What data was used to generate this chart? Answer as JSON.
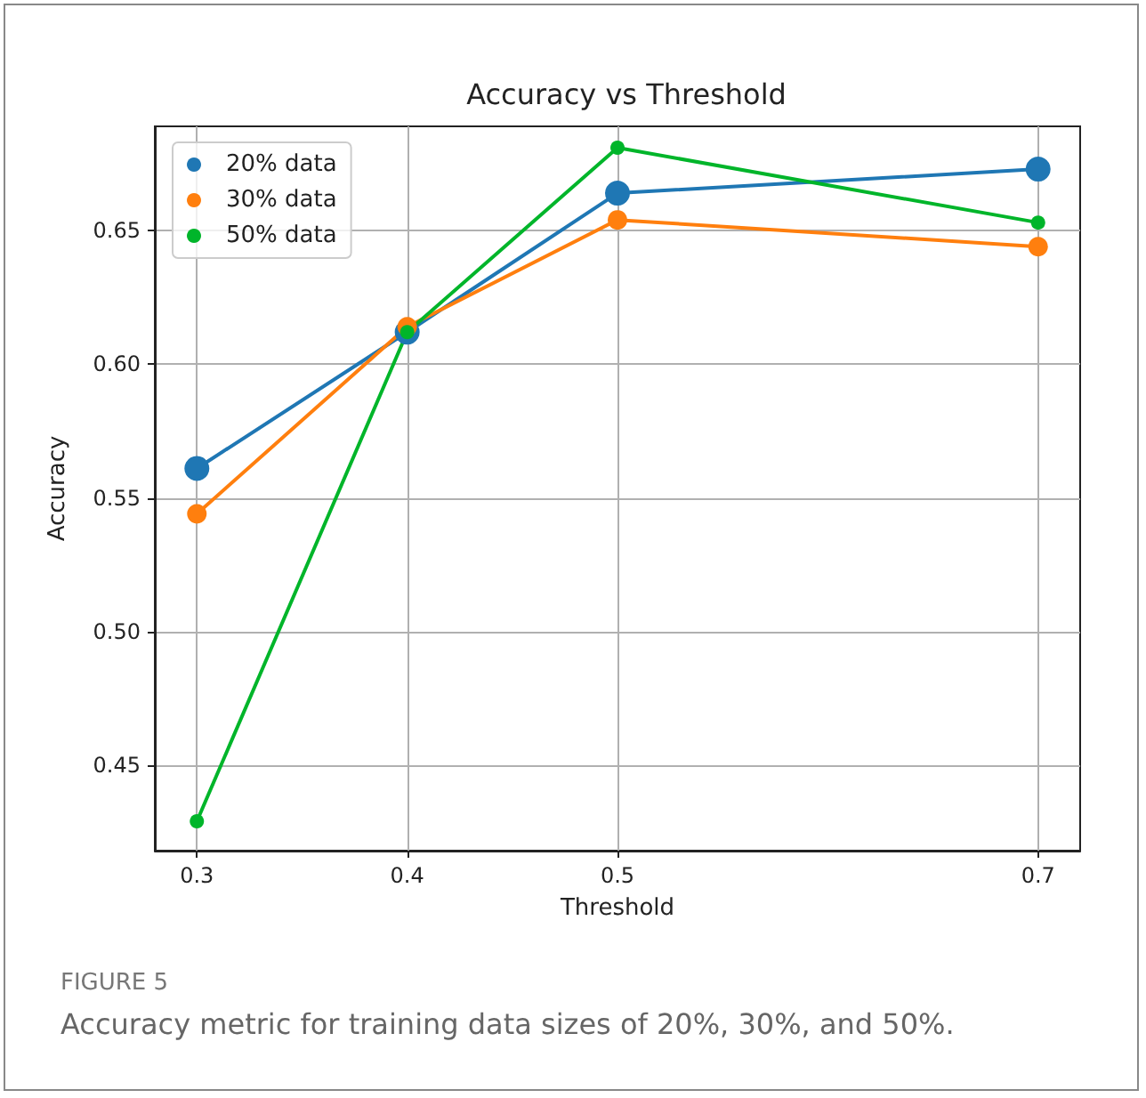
{
  "chart_data": {
    "type": "line",
    "title": "Accuracy vs Threshold",
    "xlabel": "Threshold",
    "ylabel": "Accuracy",
    "x": [
      0.3,
      0.4,
      0.5,
      0.7
    ],
    "series": [
      {
        "name": "20% data",
        "color": "#1f77b4",
        "values": [
          0.561,
          0.612,
          0.664,
          0.673
        ]
      },
      {
        "name": "30% data",
        "color": "#ff7f0e",
        "values": [
          0.544,
          0.614,
          0.654,
          0.644
        ]
      },
      {
        "name": "50% data",
        "color": "#00b52a",
        "values": [
          0.429,
          0.612,
          0.681,
          0.653
        ]
      }
    ],
    "xlim": [
      0.28,
      0.72
    ],
    "xticks": [
      0.3,
      0.4,
      0.5,
      0.7
    ],
    "ylim": [
      0.418,
      0.689
    ],
    "yticks": [
      {
        "value": 0.45,
        "label": "0.45"
      },
      {
        "value": 0.5,
        "label": "0.50"
      },
      {
        "value": 0.55,
        "label": "0.55"
      },
      {
        "value": 0.6,
        "label": "0.60"
      },
      {
        "value": 0.65,
        "label": "0.65"
      }
    ],
    "grid": true,
    "legend": "top left",
    "marker": "circle",
    "line_style": "solid",
    "annotations": [
      "FIGURE 5",
      "Accuracy metric for training data sizes of 20%, 30%, and 50%."
    ]
  }
}
